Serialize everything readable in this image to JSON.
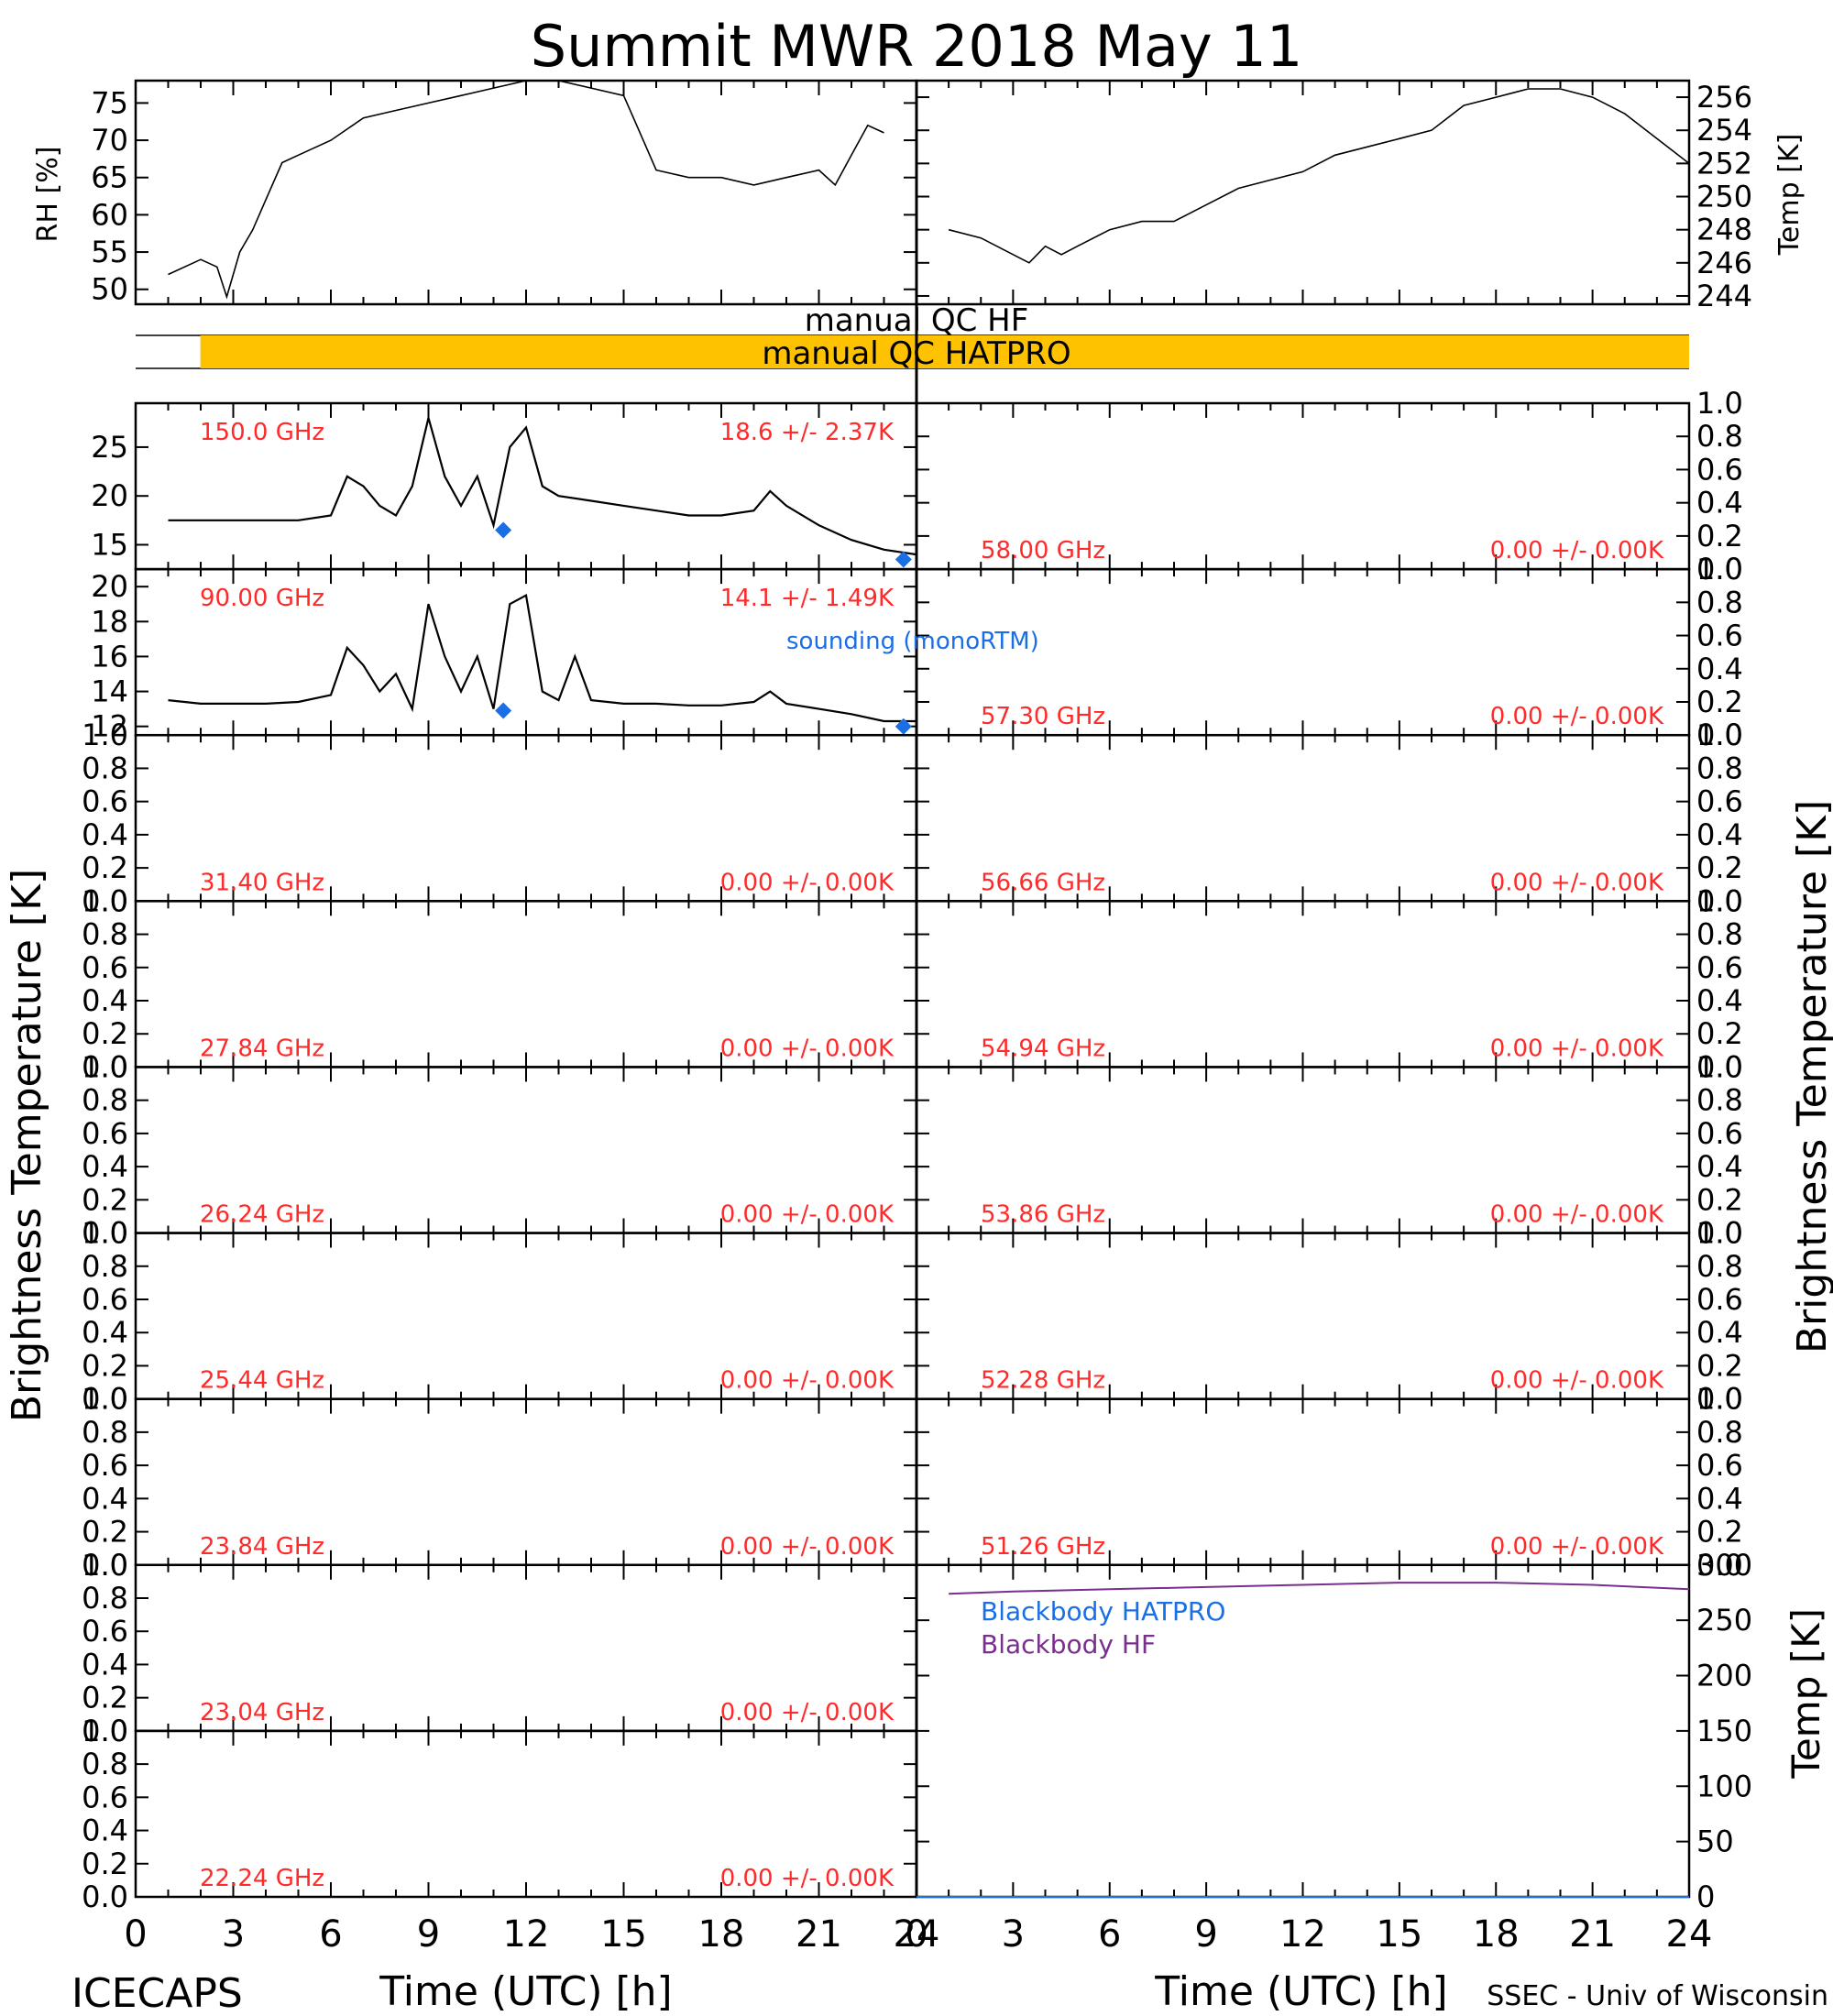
{
  "title": "Summit MWR 2018 May 11",
  "footer_left": "ICECAPS",
  "footer_right": "SSEC - Univ of Wisconsin",
  "colors": {
    "qc_bar": "#ffc200",
    "label_red": "#ff2a2a",
    "blue": "#1a6fe6",
    "purple": "#7a2e8e"
  },
  "axes": {
    "xlabel": "Time (UTC) [h]",
    "xticks": [
      "0",
      "3",
      "6",
      "9",
      "12",
      "15",
      "18",
      "21",
      "24"
    ],
    "xlim": [
      0,
      24
    ],
    "brightness_label": "Brightness Temperature [K]",
    "unit_ticks": [
      "0.0",
      "0.2",
      "0.4",
      "0.6",
      "0.8",
      "1.0"
    ]
  },
  "rh": {
    "ylabel": "RH [%]",
    "ylim": [
      48,
      78
    ],
    "yticks": [
      "50",
      "55",
      "60",
      "65",
      "70",
      "75"
    ],
    "x": [
      1,
      2,
      2.5,
      2.8,
      3.2,
      3.6,
      4,
      4.5,
      5,
      6,
      7,
      8,
      9,
      10,
      11,
      12,
      13,
      14,
      15,
      15.5,
      16,
      17,
      18,
      19,
      20,
      21,
      21.5,
      22,
      22.5,
      23
    ],
    "y": [
      52,
      54,
      53,
      49,
      55,
      58,
      62,
      67,
      68,
      70,
      73,
      74,
      75,
      76,
      77,
      78,
      78,
      77,
      76,
      71,
      66,
      65,
      65,
      64,
      65,
      66,
      64,
      68,
      72,
      71
    ]
  },
  "temp": {
    "ylabel": "Temp [K]",
    "ylim": [
      243.5,
      257
    ],
    "yticks": [
      "244",
      "246",
      "248",
      "250",
      "252",
      "254",
      "256"
    ],
    "x": [
      1,
      2,
      3,
      3.5,
      4,
      4.5,
      5,
      6,
      7,
      8,
      9,
      10,
      11,
      12,
      13,
      14,
      15,
      16,
      17,
      18,
      19,
      20,
      21,
      22,
      23,
      24
    ],
    "y": [
      248,
      247.5,
      246.5,
      246,
      247,
      246.5,
      247,
      248,
      248.5,
      248.5,
      249.5,
      250.5,
      251,
      251.5,
      252.5,
      253,
      253.5,
      254,
      255.5,
      256,
      256.5,
      256.5,
      256,
      255,
      253.5,
      252
    ]
  },
  "qc": {
    "hf_text": "manual  QC HF",
    "hatpro_text": "manual  QC HATPRO",
    "hatpro_start": 1,
    "hatpro_end": 24
  },
  "sounding_label": "sounding (monoRTM)",
  "left_panels": [
    {
      "freq": "150.0 GHz",
      "stat": "18.6 +/-  2.37K",
      "ylim": [
        12.5,
        29.5
      ],
      "yticks": [
        "15",
        "20",
        "25"
      ],
      "x": [
        1,
        2,
        3,
        4,
        5,
        6,
        6.5,
        7,
        7.5,
        8,
        8.5,
        9,
        9.5,
        10,
        10.5,
        11,
        11.5,
        12,
        12.5,
        13,
        14,
        15,
        16,
        17,
        18,
        19,
        19.5,
        20,
        21,
        22,
        23,
        24
      ],
      "y": [
        17.5,
        17.5,
        17.5,
        17.5,
        17.5,
        18,
        22,
        21,
        19,
        18,
        21,
        28,
        22,
        19,
        22,
        17,
        25,
        27,
        21,
        20,
        19.5,
        19,
        18.5,
        18,
        18,
        18.5,
        20.5,
        19,
        17,
        15.5,
        14.5,
        14
      ],
      "sounding": [
        {
          "x": 11.3,
          "y": 16.5
        },
        {
          "x": 23.6,
          "y": 13.5
        }
      ]
    },
    {
      "freq": "90.00 GHz",
      "stat": "14.1 +/-  1.49K",
      "ylim": [
        11.5,
        21
      ],
      "yticks": [
        "12",
        "14",
        "16",
        "18",
        "20"
      ],
      "x": [
        1,
        2,
        3,
        4,
        5,
        6,
        6.5,
        7,
        7.5,
        8,
        8.5,
        9,
        9.5,
        10,
        10.5,
        11,
        11.5,
        12,
        12.5,
        13,
        13.5,
        14,
        15,
        16,
        17,
        18,
        19,
        19.5,
        20,
        21,
        22,
        23,
        24
      ],
      "y": [
        13.5,
        13.3,
        13.3,
        13.3,
        13.4,
        13.8,
        16.5,
        15.5,
        14,
        15,
        13,
        19,
        16,
        14,
        16,
        13,
        19,
        19.5,
        14,
        13.5,
        16,
        13.5,
        13.3,
        13.3,
        13.2,
        13.2,
        13.4,
        14,
        13.3,
        13,
        12.7,
        12.3,
        12.3
      ],
      "sounding": [
        {
          "x": 11.3,
          "y": 12.9
        },
        {
          "x": 23.6,
          "y": 12.0
        }
      ]
    },
    {
      "freq": "31.40 GHz",
      "stat": "0.00 +/-  0.00K"
    },
    {
      "freq": "27.84 GHz",
      "stat": "0.00 +/-  0.00K"
    },
    {
      "freq": "26.24 GHz",
      "stat": "0.00 +/-  0.00K"
    },
    {
      "freq": "25.44 GHz",
      "stat": "0.00 +/-  0.00K"
    },
    {
      "freq": "23.84 GHz",
      "stat": "0.00 +/-  0.00K"
    },
    {
      "freq": "23.04 GHz",
      "stat": "0.00 +/-  0.00K"
    },
    {
      "freq": "22.24 GHz",
      "stat": "0.00 +/-  0.00K"
    }
  ],
  "right_panels": [
    {
      "freq": "58.00 GHz",
      "stat": "0.00 +/-  0.00K"
    },
    {
      "freq": "57.30 GHz",
      "stat": "0.00 +/-  0.00K"
    },
    {
      "freq": "56.66 GHz",
      "stat": "0.00 +/-  0.00K"
    },
    {
      "freq": "54.94 GHz",
      "stat": "0.00 +/-  0.00K"
    },
    {
      "freq": "53.86 GHz",
      "stat": "0.00 +/-  0.00K"
    },
    {
      "freq": "52.28 GHz",
      "stat": "0.00 +/-  0.00K"
    },
    {
      "freq": "51.26 GHz",
      "stat": "0.00 +/-  0.00K"
    }
  ],
  "blackbody": {
    "ylabel": "Temp [K]",
    "ylim": [
      0,
      300
    ],
    "yticks": [
      "0",
      "50",
      "100",
      "150",
      "200",
      "250",
      "300"
    ],
    "legend": [
      "Blackbody HATPRO",
      "Blackbody HF"
    ],
    "x": [
      1,
      3,
      6,
      9,
      12,
      15,
      18,
      21,
      24
    ],
    "y": [
      274,
      276,
      278,
      280,
      282,
      284,
      284,
      282,
      278
    ],
    "hatpro_x": [
      0,
      24
    ],
    "hatpro_y": [
      0,
      0
    ]
  },
  "chart_data": {
    "type": "line",
    "title": "Summit MWR 2018 May 11",
    "xlabel": "Time (UTC) [h]",
    "xlim": [
      0,
      24
    ],
    "panels": [
      "RH [%]",
      "Temp [K]",
      "150.0 GHz",
      "90.00 GHz",
      "Blackbody HF"
    ]
  }
}
